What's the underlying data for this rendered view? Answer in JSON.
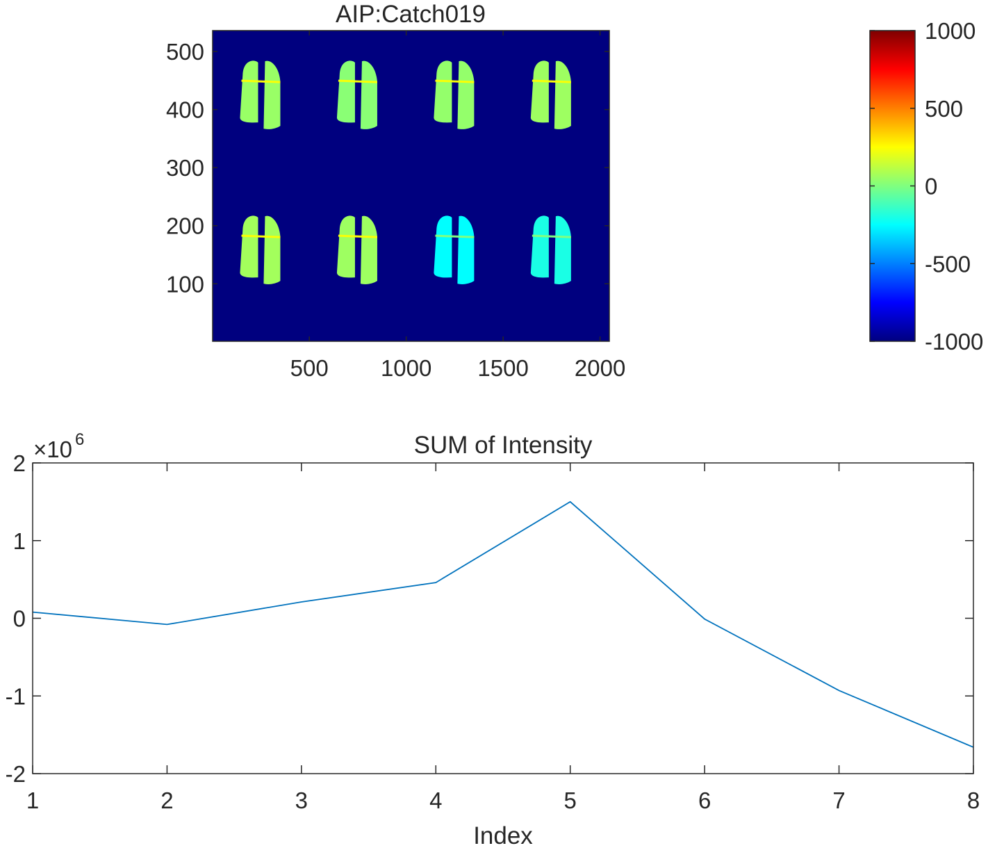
{
  "chart_data": [
    {
      "type": "heatmap",
      "title": "AIP:Catch019",
      "xlim": [
        1,
        2048
      ],
      "ylim": [
        1,
        536
      ],
      "x_ticks": [
        500,
        1000,
        1500,
        2000
      ],
      "y_ticks": [
        100,
        200,
        300,
        400,
        500
      ],
      "background_color": "#00007f",
      "colorbar": {
        "colormap": "jet",
        "clim": [
          -1000,
          1000
        ],
        "ticks": [
          1000,
          500,
          0,
          -500,
          -1000
        ],
        "tick_labels": [
          "1000",
          "500",
          "0",
          "-500",
          "-1000"
        ]
      },
      "regions": [
        {
          "x_center": 250,
          "y_center": 415,
          "value": 50
        },
        {
          "x_center": 750,
          "y_center": 415,
          "value": 20
        },
        {
          "x_center": 1250,
          "y_center": 415,
          "value": 40
        },
        {
          "x_center": 1750,
          "y_center": 415,
          "value": 60
        },
        {
          "x_center": 250,
          "y_center": 148,
          "value": 70
        },
        {
          "x_center": 750,
          "y_center": 148,
          "value": 60
        },
        {
          "x_center": 1250,
          "y_center": 148,
          "value": -250
        },
        {
          "x_center": 1750,
          "y_center": 148,
          "value": -200
        }
      ]
    },
    {
      "type": "line",
      "title": "SUM of Intensity",
      "xlabel": "Index",
      "ylabel": "",
      "xlim": [
        1,
        8
      ],
      "ylim": [
        -2,
        2
      ],
      "y_exponent_label": "×10",
      "y_exponent": "6",
      "x_ticks": [
        1,
        2,
        3,
        4,
        5,
        6,
        7,
        8
      ],
      "y_ticks": [
        2,
        1,
        0,
        -1,
        -2
      ],
      "series": [
        {
          "color": "#0072bd",
          "x": [
            1,
            2,
            3,
            4,
            5,
            6,
            7,
            8
          ],
          "y": [
            0.08,
            -0.08,
            0.21,
            0.46,
            1.5,
            -0.01,
            -0.93,
            -1.66
          ]
        }
      ]
    }
  ]
}
